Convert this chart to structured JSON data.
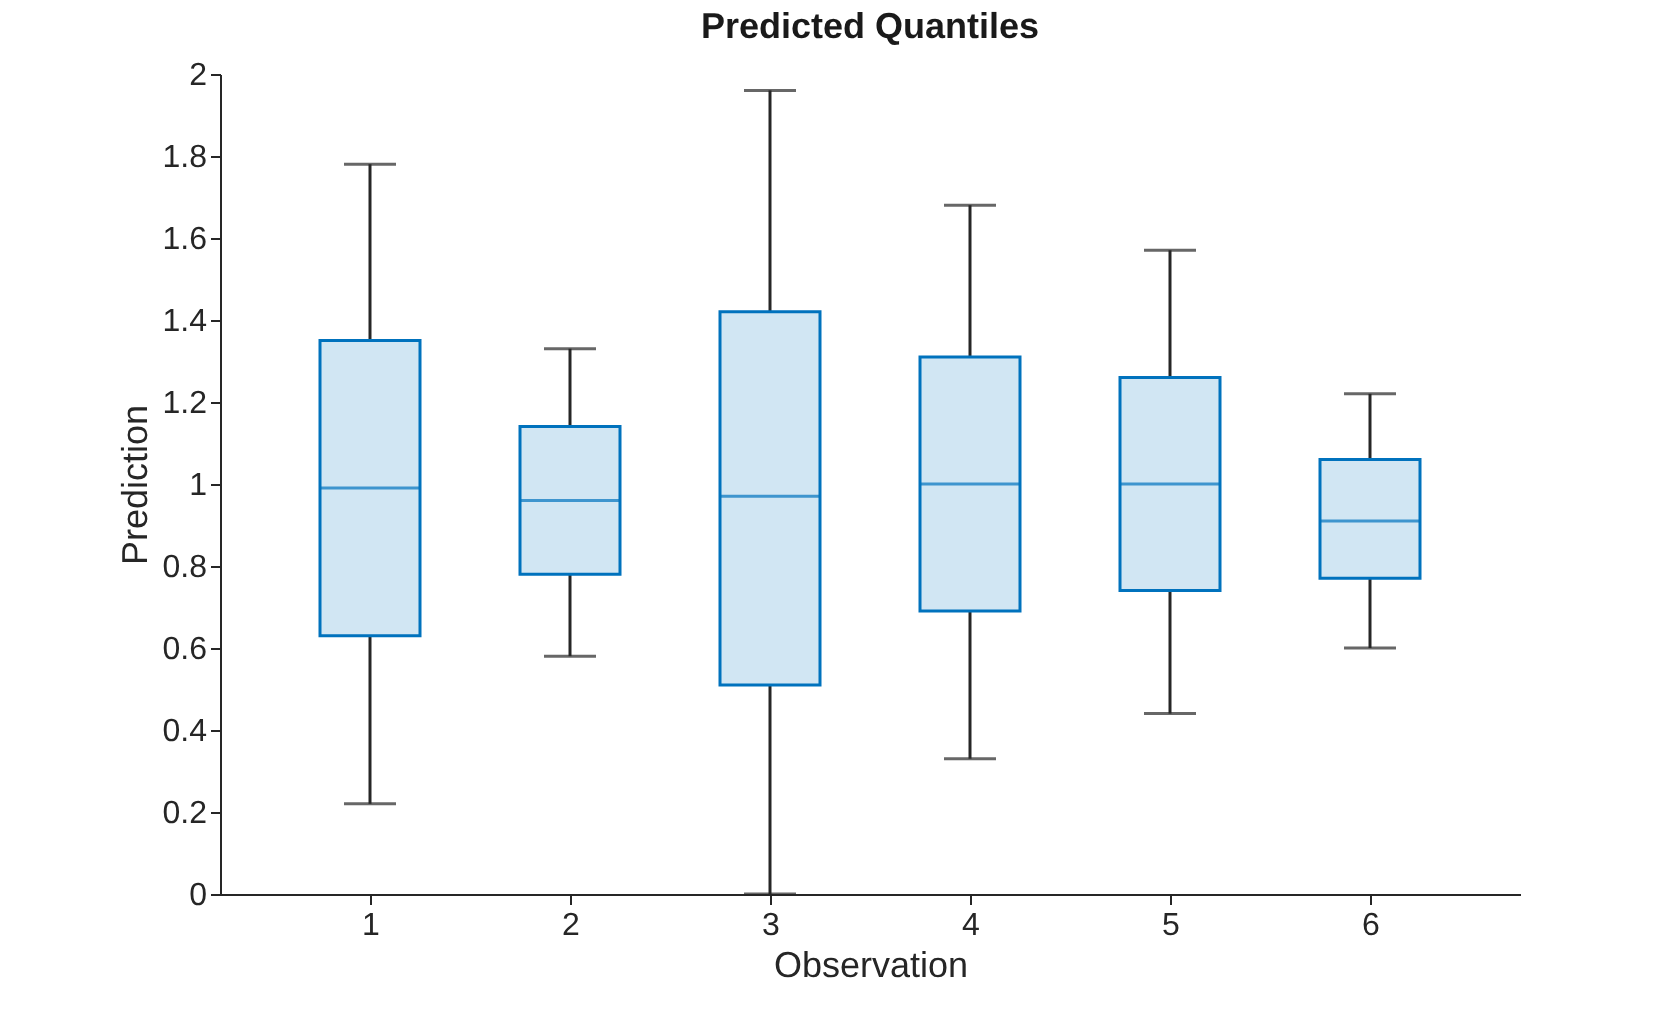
{
  "chart_data": {
    "type": "box",
    "title": "Predicted Quantiles",
    "xlabel": "Observation",
    "ylabel": "Prediction",
    "categories": [
      "1",
      "2",
      "3",
      "4",
      "5",
      "6"
    ],
    "series": [
      {
        "color": "#0072bd",
        "boxes": [
          {
            "low": 0.22,
            "q1": 0.63,
            "median": 0.99,
            "q3": 1.35,
            "high": 1.78
          },
          {
            "low": 0.58,
            "q1": 0.78,
            "median": 0.96,
            "q3": 1.14,
            "high": 1.33
          },
          {
            "low": 0.0,
            "q1": 0.51,
            "median": 0.97,
            "q3": 1.42,
            "high": 1.96
          },
          {
            "low": 0.33,
            "q1": 0.69,
            "median": 1.0,
            "q3": 1.31,
            "high": 1.68
          },
          {
            "low": 0.44,
            "q1": 0.74,
            "median": 1.0,
            "q3": 1.26,
            "high": 1.57
          },
          {
            "low": 0.6,
            "q1": 0.77,
            "median": 0.91,
            "q3": 1.06,
            "high": 1.22
          }
        ]
      }
    ],
    "ylim": [
      0,
      2
    ],
    "yticks": [
      0,
      0.2,
      0.4,
      0.6,
      0.8,
      1,
      1.2,
      1.4,
      1.6,
      1.8,
      2
    ]
  }
}
